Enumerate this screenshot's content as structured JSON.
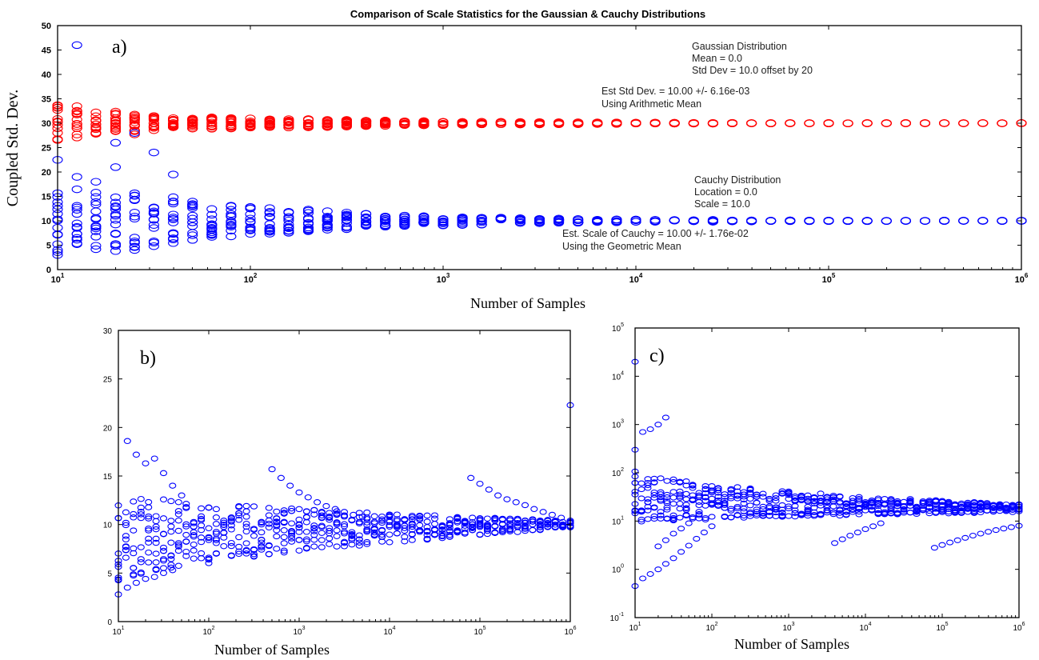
{
  "chart_data": [
    {
      "id": "a",
      "type": "scatter",
      "panel_label": "a)",
      "title": "Comparison of Scale Statistics for the Gaussian & Cauchy Distributions",
      "xlabel": "Number of Samples",
      "ylabel": "Coupled Std. Dev.",
      "xscale": "log",
      "xlim": [
        10,
        1000000
      ],
      "ylim": [
        0,
        50
      ],
      "yticks": [
        "0",
        "5",
        "10",
        "15",
        "20",
        "25",
        "30",
        "35",
        "40",
        "45",
        "50"
      ],
      "xticks": [
        {
          "base": "10",
          "exp": "1"
        },
        {
          "base": "10",
          "exp": "2"
        },
        {
          "base": "10",
          "exp": "3"
        },
        {
          "base": "10",
          "exp": "4"
        },
        {
          "base": "10",
          "exp": "5"
        },
        {
          "base": "10",
          "exp": "6"
        }
      ],
      "colors": {
        "gaussian": "#ff0000",
        "cauchy": "#0000ff"
      },
      "annotations": {
        "gaussian": [
          "Gaussian Distribution",
          "Mean = 0.0",
          "Std Dev = 10.0 offset by 20"
        ],
        "gaussian_est": [
          "Est Std Dev. = 10.00 +/- 6.16e-03",
          "Using Arithmetic Mean"
        ],
        "cauchy": [
          "Cauchy Distribution",
          "Location = 0.0",
          "Scale = 10.0"
        ],
        "cauchy_est": [
          "Est. Scale of Cauchy = 10.00 +/- 1.76e-02",
          "Using the Geometric Mean"
        ]
      },
      "series": [
        {
          "role": "gaussian",
          "x": [
            10,
            12.6,
            15.8,
            20,
            25.1,
            31.6,
            39.8,
            50.1,
            63.1,
            79.4,
            100,
            126,
            158,
            200,
            251,
            316,
            398,
            501,
            631,
            794,
            1000,
            1259,
            1585,
            1995,
            2512,
            3162,
            3981,
            5012,
            6310,
            7943,
            10000,
            12589,
            15849,
            19953,
            25119,
            31623,
            39811,
            50119,
            63096,
            79433,
            100000,
            125893,
            158489,
            199526,
            251189,
            316228,
            398107,
            501187,
            630957,
            794328,
            1000000
          ],
          "center": 30,
          "spread": [
            3.8,
            3.6,
            2.6,
            2.4,
            2.3,
            1.6,
            1.4,
            1.3,
            1.2,
            1.1,
            1.0,
            0.95,
            0.9,
            0.85,
            0.8,
            0.7,
            0.6,
            0.55,
            0.5,
            0.45,
            0.4,
            0.38,
            0.35,
            0.3,
            0.28,
            0.25,
            0.22,
            0.2,
            0.18,
            0.16,
            0.15,
            0.13,
            0.12,
            0.1,
            0.09,
            0.08,
            0.07,
            0.06,
            0.05,
            0.05,
            0.05,
            0.04,
            0.04,
            0.03,
            0.03,
            0.03,
            0.02,
            0.02,
            0.02,
            0.02,
            0.02
          ]
        },
        {
          "role": "cauchy",
          "x": [
            10,
            12.6,
            15.8,
            20,
            25.1,
            31.6,
            39.8,
            50.1,
            63.1,
            79.4,
            100,
            126,
            158,
            200,
            251,
            316,
            398,
            501,
            631,
            794,
            1000,
            1259,
            1585,
            1995,
            2512,
            3162,
            3981,
            5012,
            6310,
            7943,
            10000,
            12589,
            15849,
            19953,
            25119,
            31623,
            39811,
            50119,
            63096,
            79433,
            100000,
            125893,
            158489,
            199526,
            251189,
            316228,
            398107,
            501187,
            630957,
            794328,
            1000000
          ],
          "center": 10,
          "spread": [
            7.5,
            6.5,
            6.0,
            6.0,
            6.0,
            5.5,
            5.0,
            4.0,
            3.5,
            3.3,
            3.0,
            2.8,
            2.6,
            2.3,
            2.0,
            1.8,
            1.5,
            1.3,
            1.2,
            1.1,
            1.0,
            0.9,
            0.8,
            0.7,
            0.6,
            0.5,
            0.45,
            0.4,
            0.35,
            0.3,
            0.28,
            0.25,
            0.22,
            0.2,
            0.18,
            0.16,
            0.14,
            0.12,
            0.1,
            0.09,
            0.08,
            0.07,
            0.06,
            0.05,
            0.05,
            0.04,
            0.04,
            0.03,
            0.03,
            0.03,
            0.02
          ],
          "outliers": [
            [
              10,
              22.5
            ],
            [
              12.6,
              46
            ],
            [
              20,
              26
            ],
            [
              20,
              21
            ],
            [
              25.1,
              28
            ],
            [
              31.6,
              24
            ],
            [
              39.8,
              19.5
            ],
            [
              12.6,
              19
            ],
            [
              15.8,
              18
            ],
            [
              10,
              3
            ],
            [
              20,
              3.8
            ]
          ]
        }
      ]
    },
    {
      "id": "b",
      "type": "scatter",
      "panel_label": "b)",
      "xlabel": "Number of Samples",
      "ylabel": "",
      "xscale": "log",
      "xlim": [
        10,
        1000000
      ],
      "ylim": [
        0,
        30
      ],
      "yticks": [
        "0",
        "5",
        "10",
        "15",
        "20",
        "25",
        "30"
      ],
      "xticks": [
        {
          "base": "10",
          "exp": "1"
        },
        {
          "base": "10",
          "exp": "2"
        },
        {
          "base": "10",
          "exp": "3"
        },
        {
          "base": "10",
          "exp": "4"
        },
        {
          "base": "10",
          "exp": "5"
        },
        {
          "base": "10",
          "exp": "6"
        }
      ],
      "color": "#0000ff",
      "bands": [
        {
          "logx_start": 1.0,
          "logx_end": 6.0,
          "lower_start": 3.5,
          "lower_end": 9.6,
          "upper_start": 13.5,
          "upper_end": 10.4,
          "curve": 0.55
        }
      ],
      "trails": [
        {
          "x": [
            12.6,
            15.8,
            20,
            25.1,
            31.6,
            39.8,
            50.1
          ],
          "y": [
            18.6,
            17.2,
            16.3,
            16.8,
            15.3,
            14.0,
            13.0
          ]
        },
        {
          "x": [
            501,
            631,
            794,
            1000,
            1259,
            1585,
            1995,
            2512,
            3162,
            3981,
            5012
          ],
          "y": [
            15.7,
            14.8,
            14.0,
            13.3,
            12.8,
            12.3,
            11.9,
            11.6,
            11.3,
            11.0,
            10.8
          ]
        },
        {
          "x": [
            79433,
            100000,
            125893,
            158489,
            199526,
            251189,
            316228,
            398107,
            501187,
            630957,
            794328,
            1000000
          ],
          "y": [
            14.8,
            14.2,
            13.6,
            13.0,
            12.6,
            12.3,
            12.0,
            11.6,
            11.3,
            11.0,
            10.7,
            10.4
          ]
        },
        {
          "x": [
            10,
            12.6,
            15.8,
            20,
            25.1,
            31.6,
            39.8
          ],
          "y": [
            2.8,
            3.5,
            4.0,
            4.4,
            4.6,
            5.0,
            5.3
          ]
        }
      ],
      "outliers": [
        [
          1000000,
          22.3
        ]
      ]
    },
    {
      "id": "c",
      "type": "scatter",
      "panel_label": "c)",
      "xlabel": "Number of Samples",
      "ylabel": "",
      "xscale": "log",
      "yscale": "log",
      "xlim": [
        10,
        1000000
      ],
      "ylim": [
        0.1,
        100000
      ],
      "yticks": [
        {
          "base": "10",
          "exp": "-1"
        },
        {
          "base": "10",
          "exp": "0"
        },
        {
          "base": "10",
          "exp": "1"
        },
        {
          "base": "10",
          "exp": "2"
        },
        {
          "base": "10",
          "exp": "3"
        },
        {
          "base": "10",
          "exp": "4"
        },
        {
          "base": "10",
          "exp": "5"
        }
      ],
      "xticks": [
        {
          "base": "10",
          "exp": "1"
        },
        {
          "base": "10",
          "exp": "2"
        },
        {
          "base": "10",
          "exp": "3"
        },
        {
          "base": "10",
          "exp": "4"
        },
        {
          "base": "10",
          "exp": "5"
        },
        {
          "base": "10",
          "exp": "6"
        }
      ],
      "color": "#0000ff",
      "bands": [
        {
          "logx_start": 1.0,
          "logx_end": 6.0,
          "lower_start": 0.9,
          "lower_end": 1.18,
          "upper_start": 2.15,
          "upper_end": 1.35,
          "curve": 0.45
        }
      ],
      "trails": [
        {
          "x": [
            10,
            12.6,
            15.8,
            20,
            25.1,
            31.6,
            39.8,
            50.1,
            63.1,
            79.4,
            100
          ],
          "y": [
            0.45,
            0.65,
            0.8,
            1.0,
            1.3,
            1.7,
            2.3,
            3.1,
            4.3,
            5.8,
            7.8
          ]
        },
        {
          "x": [
            10,
            12.6,
            15.8,
            20,
            25.1
          ],
          "y": [
            300,
            700,
            800,
            1000,
            1400
          ]
        },
        {
          "x": [
            3981,
            5012,
            6310,
            7943,
            10000,
            12589,
            15849
          ],
          "y": [
            3.5,
            4.2,
            5.0,
            5.8,
            6.8,
            7.8,
            9.0
          ]
        },
        {
          "x": [
            79433,
            100000,
            125893,
            158489,
            199526,
            251189,
            316228,
            398107,
            501187,
            630957,
            794328,
            1000000
          ],
          "y": [
            2.8,
            3.2,
            3.6,
            4.0,
            4.5,
            5.0,
            5.5,
            6.0,
            6.5,
            7.0,
            7.5,
            8.0
          ]
        },
        {
          "x": [
            20,
            25.1,
            31.6,
            39.8,
            50.1
          ],
          "y": [
            3.0,
            4.0,
            5.5,
            7.0,
            9.0
          ]
        }
      ],
      "outliers": [
        [
          10,
          20000
        ]
      ]
    }
  ]
}
